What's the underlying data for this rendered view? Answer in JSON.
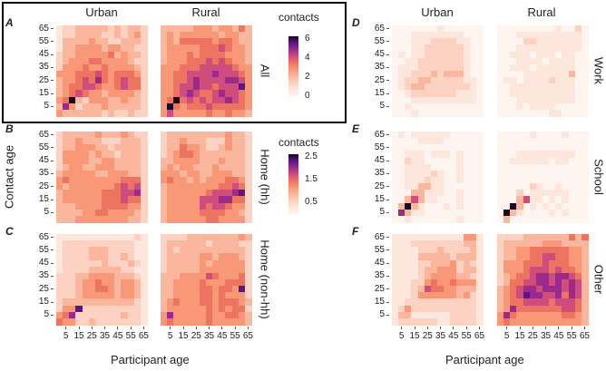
{
  "chart_data": {
    "type": "heatmap",
    "xlabel": "Participant age",
    "ylabel": "Contact age",
    "columns": [
      "Urban",
      "Rural"
    ],
    "age_groups": [
      "0",
      "5",
      "10",
      "15",
      "20",
      "25",
      "30",
      "35",
      "40",
      "45",
      "50",
      "55",
      "60",
      "65"
    ],
    "x_tick_labels": [
      "5",
      "15",
      "25",
      "35",
      "45",
      "55",
      "65"
    ],
    "y_tick_labels": [
      "65",
      "55",
      "45",
      "35",
      "25",
      "15",
      "5"
    ],
    "matrix_encoding": "rows listed top (contact age 65) to bottom (contact age 0); columns participant age 0 to 65; each digit is a colour level 0-9, value = level x value_per_level",
    "colormap": [
      "#fff5f0",
      "#fde6dc",
      "#fcd3c2",
      "#fbb79d",
      "#f99877",
      "#ee7462",
      "#cf4d7c",
      "#9b2b8a",
      "#5b1689",
      "#1a0820"
    ],
    "legends": [
      {
        "title": "contacts",
        "ticks": [
          "6",
          "4",
          "2",
          "0"
        ],
        "tick_values": [
          6,
          4,
          2,
          0
        ],
        "range": [
          0,
          6.3
        ]
      },
      {
        "title": "contacts",
        "ticks": [
          "2.5",
          "1.5",
          "0.5"
        ],
        "tick_values": [
          2.5,
          1.5,
          0.5
        ],
        "range": [
          0,
          2.6
        ]
      }
    ],
    "panels": [
      {
        "letter": "A",
        "label": "All",
        "legend": 0,
        "value_per_level": 0.7,
        "urban": [
          "12233333232332",
          "12233332232342",
          "13333433223332",
          "13344443443322",
          "23344444534332",
          "23444554444322",
          "24445445444432",
          "44455565455542",
          "34456575456552",
          "34556654456552",
          "34565443444432",
          "45932444334332",
          "37423334333332",
          "43333332322322"
        ],
        "rural": [
          "33333444344353",
          "34344444434433",
          "34355555455433",
          "34444455565443",
          "34445455554443",
          "34445556565443",
          "44455566666544",
          "44556666766654",
          "44556766667764",
          "44566766566684",
          "44567655676654",
          "45956565667654",
          "49545556555554",
          "46444445445443"
        ]
      },
      {
        "letter": "B",
        "label": "Home (hh)",
        "legend": 1,
        "value_per_level": 0.28,
        "urban": [
          "23333343334322",
          "23343332223332",
          "23344433233332",
          "24444343323332",
          "24444334433332",
          "23443344433332",
          "34444433444332",
          "45444444445552",
          "43444444456562",
          "34444445556672",
          "34444445556552",
          "33344445555442",
          "33334455444432",
          "33344444444332"
        ],
        "rural": [
          "23333333334332",
          "23343332224332",
          "23354432234332",
          "23455433333332",
          "33444433343332",
          "34344333433332",
          "44434433444332",
          "45443434445542",
          "34444444455652",
          "34444445666782",
          "34444466677552",
          "34444465665442",
          "34444455554432",
          "34444445544442"
        ]
      },
      {
        "letter": "C",
        "label": "Home (non-hh)",
        "legend": 1,
        "value_per_level": 0.28,
        "urban": [
          "11111111111121",
          "12222222222211",
          "12222333222211",
          "12222333223211",
          "12222223222321",
          "12222333332211",
          "22233444433321",
          "22234454434431",
          "22234455434431",
          "22234444434431",
          "23333333333321",
          "24482222222221",
          "45722222223221",
          "54422322222221"
        ],
        "rural": [
          "22223333333343",
          "23333332333322",
          "23233333333332",
          "23333344344432",
          "23333343444442",
          "23333344444442",
          "33344446544452",
          "33444454445552",
          "33444455455482",
          "33444455454442",
          "34544455455543",
          "34444445454552",
          "47444445445543",
          "45444445444443"
        ]
      },
      {
        "letter": "D",
        "label": "Work",
        "legend": 1,
        "value_per_level": 0.28,
        "urban": [
          "00000001000000",
          "00011111111000",
          "00011122221100",
          "00011222222100",
          "01011222222100",
          "00112222222100",
          "01112222222100",
          "01122232333100",
          "01223322222110",
          "01233222222210",
          "00122222221110",
          "00011111111110",
          "00100000000000",
          "00010000000000"
        ],
        "rural": [
          "00000000010020",
          "00011111111110",
          "00002211111110",
          "00011111111110",
          "00111011101100",
          "00011110111100",
          "00111011111100",
          "00001111111300",
          "01101111211100",
          "00111111111100",
          "00111111111100",
          "00011111111100",
          "00010111100000",
          "00000000110000"
        ]
      },
      {
        "letter": "E",
        "label": "School",
        "legend": 1,
        "value_per_level": 0.28,
        "urban": [
          "01011111100000",
          "00001111000000",
          "00000000000000",
          "00111011101000",
          "00211000001000",
          "00111100001000",
          "00111121001000",
          "00111211001000",
          "00113311000000",
          "00033111001000",
          "00363110001000",
          "03931000101000",
          "07311000000000",
          "00100000001000"
        ],
        "rural": [
          "00000100001000",
          "00000000000000",
          "00000000000000",
          "00011111111100",
          "00111111011000",
          "00000000000000",
          "00000000000000",
          "00000000000000",
          "00000210010000",
          "00020111111000",
          "00036110101000",
          "00930101010000",
          "09310000101000",
          "03000000000000"
        ]
      },
      {
        "letter": "F",
        "label": "Other",
        "legend": 1,
        "value_per_level": 0.28,
        "urban": [
          "11111111111441",
          "11122222222331",
          "11112223222231",
          "11113333323331",
          "11112233342321",
          "11112334442331",
          "11112344443321",
          "11122454454441",
          "11123655443331",
          "11124444443421",
          "11222222222221",
          "12422222222221",
          "13311111122221",
          "12222221122221"
        ],
        "rural": [
          "22223333333535",
          "23333334443333",
          "23344555555443",
          "23344556655443",
          "24445556555443",
          "24445666565543",
          "23455677677653",
          "23556677676763",
          "34567767776763",
          "34568776675763",
          "34556666566653",
          "34755555556653",
          "47544444445543",
          "45444444444443"
        ]
      }
    ]
  }
}
